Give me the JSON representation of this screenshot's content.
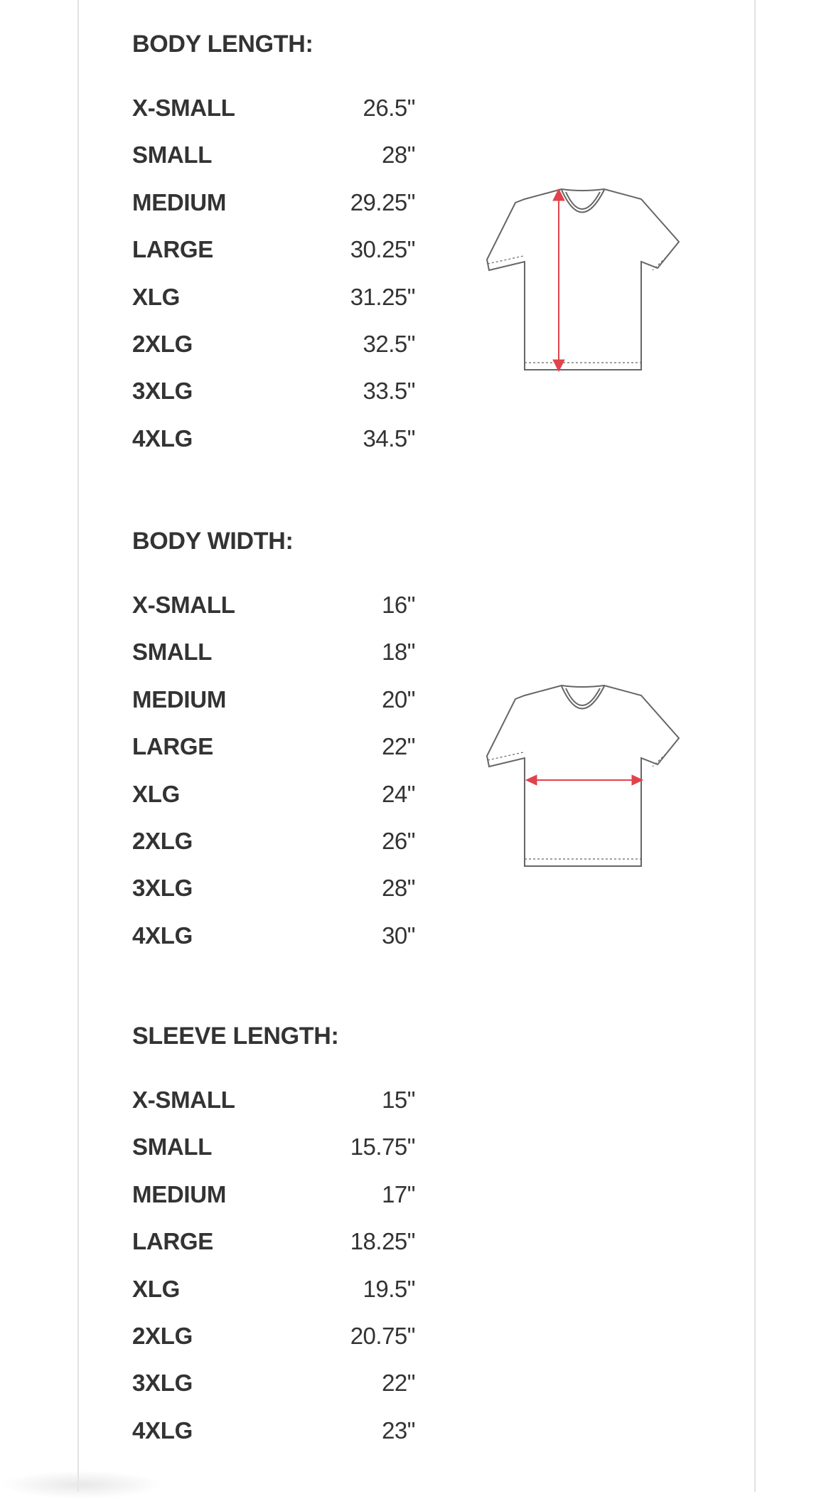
{
  "sections": [
    {
      "heading": "BODY LENGTH:",
      "rows": [
        {
          "size": "X-SMALL",
          "value": "26.5\""
        },
        {
          "size": "SMALL",
          "value": "28\""
        },
        {
          "size": "MEDIUM",
          "value": "29.25\""
        },
        {
          "size": "LARGE",
          "value": "30.25\""
        },
        {
          "size": "XLG",
          "value": "31.25\""
        },
        {
          "size": "2XLG",
          "value": "32.5\""
        },
        {
          "size": "3XLG",
          "value": "33.5\""
        },
        {
          "size": "4XLG",
          "value": "34.5\""
        }
      ]
    },
    {
      "heading": "BODY WIDTH:",
      "rows": [
        {
          "size": "X-SMALL",
          "value": "16\""
        },
        {
          "size": "SMALL",
          "value": "18\""
        },
        {
          "size": "MEDIUM",
          "value": "20\""
        },
        {
          "size": "LARGE",
          "value": "22\""
        },
        {
          "size": "XLG",
          "value": "24\""
        },
        {
          "size": "2XLG",
          "value": "26\""
        },
        {
          "size": "3XLG",
          "value": "28\""
        },
        {
          "size": "4XLG",
          "value": "30\""
        }
      ]
    },
    {
      "heading": "SLEEVE LENGTH:",
      "rows": [
        {
          "size": "X-SMALL",
          "value": "15\""
        },
        {
          "size": "SMALL",
          "value": "15.75\""
        },
        {
          "size": "MEDIUM",
          "value": "17\""
        },
        {
          "size": "LARGE",
          "value": "18.25\""
        },
        {
          "size": "XLG",
          "value": "19.5\""
        },
        {
          "size": "2XLG",
          "value": "20.75\""
        },
        {
          "size": "3XLG",
          "value": "22\""
        },
        {
          "size": "4XLG",
          "value": "23\""
        }
      ]
    }
  ],
  "diagrams": [
    {
      "icon": "tshirt-body-length-icon",
      "measure": "vertical"
    },
    {
      "icon": "tshirt-body-width-icon",
      "measure": "horizontal"
    }
  ],
  "colors": {
    "text": "#333333",
    "arrow": "#e0434b",
    "outline": "#666666",
    "border": "#e2e2e2"
  }
}
